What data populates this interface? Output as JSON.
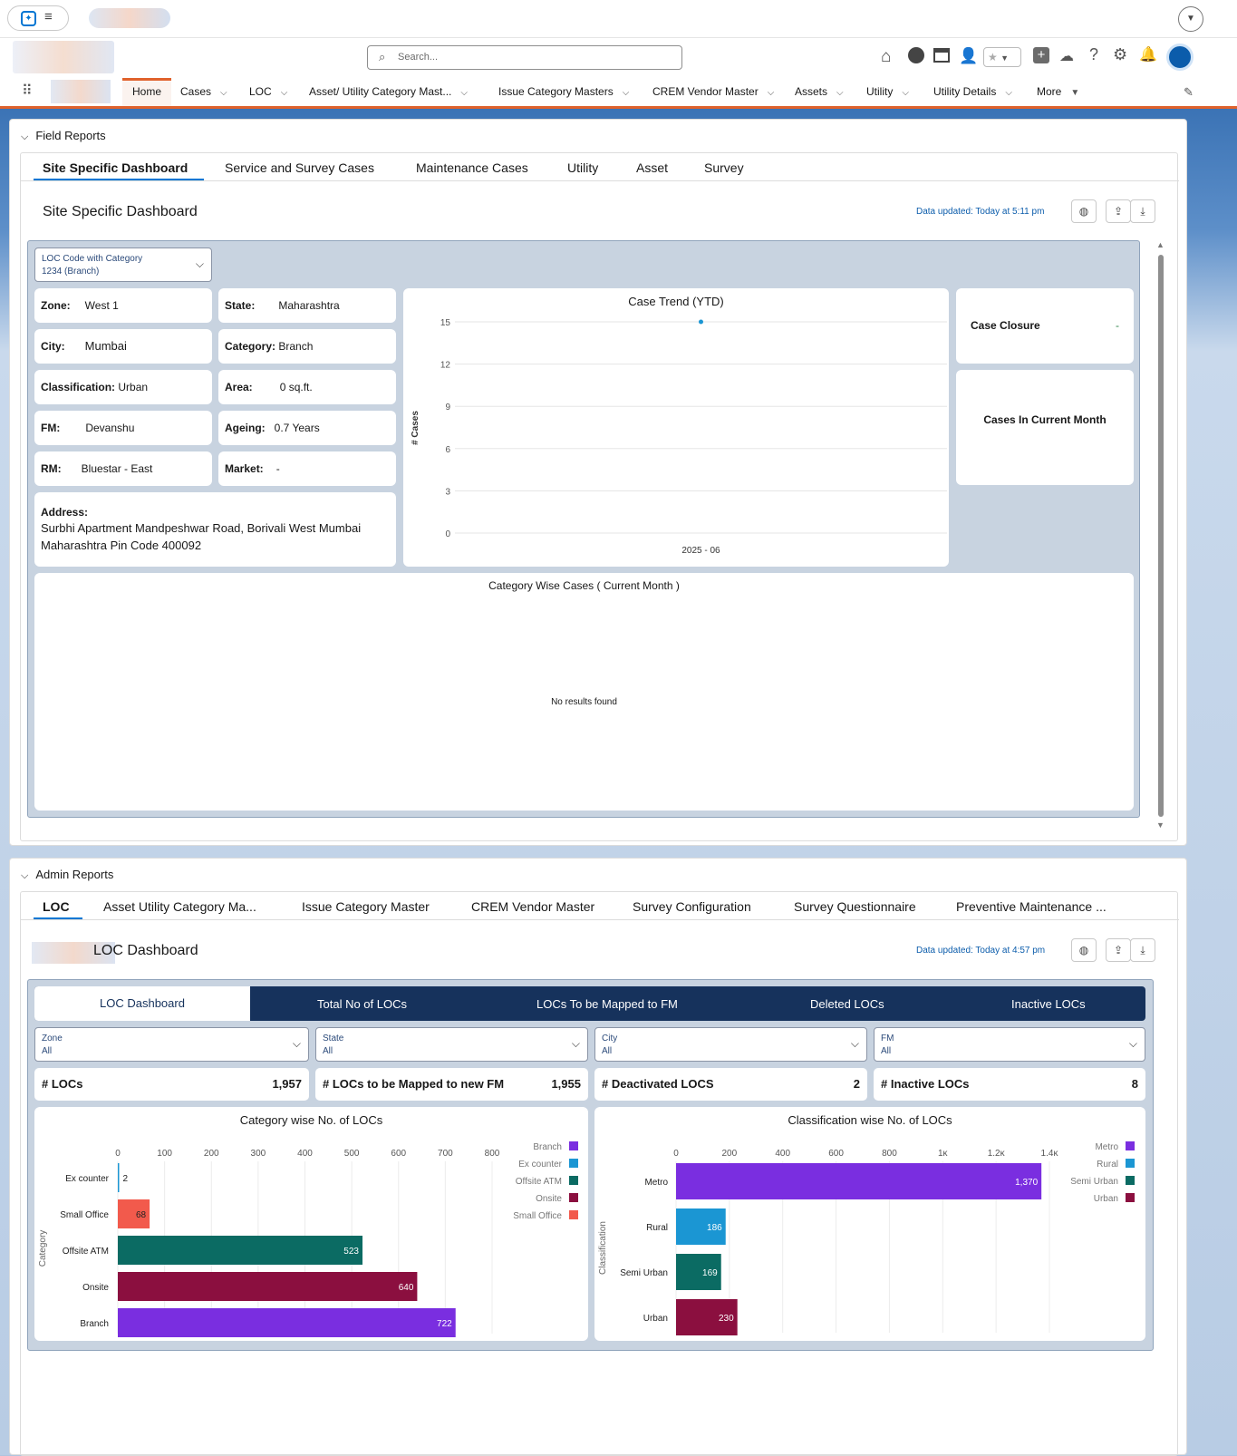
{
  "search": {
    "placeholder": "Search..."
  },
  "nav": {
    "items": [
      {
        "label": "Home"
      },
      {
        "label": "Cases"
      },
      {
        "label": "LOC"
      },
      {
        "label": "Asset/ Utility Category Mast..."
      },
      {
        "label": "Issue Category Masters"
      },
      {
        "label": "CREM Vendor Master"
      },
      {
        "label": "Assets"
      },
      {
        "label": "Utility"
      },
      {
        "label": "Utility Details"
      },
      {
        "label": "More"
      }
    ]
  },
  "field": {
    "section_title": "Field Reports",
    "tabs": [
      "Site Specific Dashboard",
      "Service and Survey Cases",
      "Maintenance Cases",
      "Utility",
      "Asset",
      "Survey"
    ],
    "dashboard_title": "Site Specific Dashboard",
    "updated": "Data updated: Today at 5:11 pm",
    "loc_filter": {
      "label": "LOC Code with Category",
      "value": "1234 (Branch)"
    },
    "info": {
      "zone_k": "Zone:",
      "zone_v": "West 1",
      "state_k": "State:",
      "state_v": "Maharashtra",
      "city_k": "City:",
      "city_v": "Mumbai",
      "category_k": "Category:",
      "category_v": "Branch",
      "class_k": "Classification:",
      "class_v": "Urban",
      "area_k": "Area:",
      "area_v": "0 sq.ft.",
      "fm_k": "FM:",
      "fm_v": "Devanshu",
      "ageing_k": "Ageing:",
      "ageing_v": "0.7 Years",
      "rm_k": "RM:",
      "rm_v": "Bluestar - East",
      "market_k": "Market:",
      "market_v": "-",
      "address_k": "Address:",
      "address_v1": "Surbhi Apartment Mandpeshwar Road, Borivali West  Mumbai",
      "address_v2": "Maharashtra Pin Code  400092"
    },
    "case_closure": {
      "label": "Case Closure",
      "value": "-"
    },
    "cases_month": {
      "label": "Cases In Current Month"
    },
    "category_wise": {
      "title": "Category Wise Cases ( Current Month )",
      "empty": "No results found"
    }
  },
  "admin": {
    "section_title": "Admin Reports",
    "tabs": [
      "LOC",
      "Asset Utility Category Ma...",
      "Issue Category Master",
      "CREM Vendor Master",
      "Survey Configuration",
      "Survey Questionnaire",
      "Preventive Maintenance ..."
    ],
    "dashboard_title": "LOC Dashboard",
    "updated": "Data updated: Today at 4:57 pm",
    "inner_tabs": [
      "LOC Dashboard",
      "Total No of LOCs",
      "LOCs To be Mapped to FM",
      "Deleted LOCs",
      "Inactive LOCs"
    ],
    "filters": [
      {
        "label": "Zone",
        "value": "All"
      },
      {
        "label": "State",
        "value": "All"
      },
      {
        "label": "City",
        "value": "All"
      },
      {
        "label": "FM",
        "value": "All"
      }
    ],
    "metrics": [
      {
        "label": "# LOCs",
        "value": "1,957"
      },
      {
        "label": "# LOCs to be Mapped to new FM",
        "value": "1,955"
      },
      {
        "label": "# Deactivated LOCS",
        "value": "2"
      },
      {
        "label": "# Inactive LOCs",
        "value": "8"
      }
    ]
  },
  "colors": {
    "accent": "#0176d3",
    "nav_border": "#e0622c",
    "dark_tab": "#16325c"
  },
  "chart_data": [
    {
      "type": "line",
      "title": "Case Trend (YTD)",
      "xlabel": "",
      "ylabel": "# Cases",
      "x": [
        "2025 - 06"
      ],
      "series": [
        {
          "values": [
            15
          ]
        }
      ],
      "ylim": [
        0,
        15
      ],
      "yticks": [
        0,
        3,
        6,
        9,
        12,
        15
      ]
    },
    {
      "type": "bar",
      "orientation": "horizontal",
      "title": "Category wise No. of LOCs",
      "ylabel": "Category",
      "categories": [
        "Ex counter",
        "Small Office",
        "Offsite ATM",
        "Onsite",
        "Branch"
      ],
      "values": [
        2,
        68,
        523,
        640,
        722
      ],
      "colors": [
        "#1b96d3",
        "#f25a4c",
        "#0b6b63",
        "#8b0f3f",
        "#7a2ee0"
      ],
      "xticks": [
        "0",
        "100",
        "200",
        "300",
        "400",
        "500",
        "600",
        "700",
        "800"
      ],
      "xlim": [
        0,
        800
      ],
      "legend": [
        "Branch",
        "Ex counter",
        "Offsite ATM",
        "Onsite",
        "Small Office"
      ],
      "legend_colors": [
        "#7a2ee0",
        "#1b96d3",
        "#0b6b63",
        "#8b0f3f",
        "#f25a4c"
      ],
      "legend_position": "top-right"
    },
    {
      "type": "bar",
      "orientation": "horizontal",
      "title": "Classification wise No. of LOCs",
      "ylabel": "Classification",
      "categories": [
        "Metro",
        "Rural",
        "Semi Urban",
        "Urban"
      ],
      "values": [
        1370,
        186,
        169,
        230
      ],
      "value_labels": [
        "1,370",
        "186",
        "169",
        "230"
      ],
      "colors": [
        "#7a2ee0",
        "#1b96d3",
        "#0b6b63",
        "#8b0f3f"
      ],
      "xticks": [
        "0",
        "200",
        "400",
        "600",
        "800",
        "1κ",
        "1.2κ",
        "1.4κ"
      ],
      "xlim": [
        0,
        1400
      ],
      "legend": [
        "Metro",
        "Rural",
        "Semi Urban",
        "Urban"
      ],
      "legend_colors": [
        "#7a2ee0",
        "#1b96d3",
        "#0b6b63",
        "#8b0f3f"
      ],
      "legend_position": "top-right"
    }
  ]
}
